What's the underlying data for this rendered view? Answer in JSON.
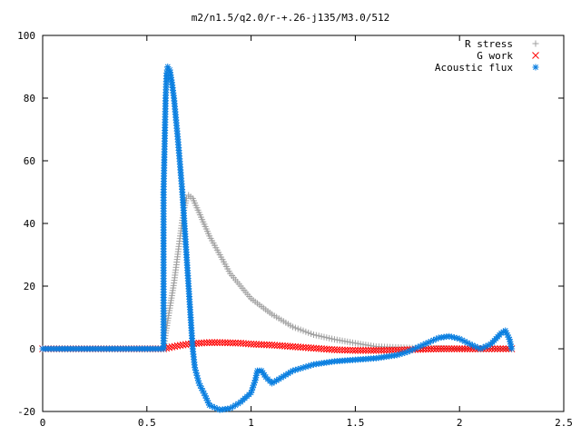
{
  "chart_data": {
    "type": "scatter",
    "title": "m2/n1.5/q2.0/r-+.26-j135/M3.0/512",
    "xlabel": "",
    "ylabel": "",
    "xlim": [
      0,
      2.5
    ],
    "ylim": [
      -20,
      100
    ],
    "x_ticks": [
      "0",
      "0.5",
      "1",
      "1.5",
      "2",
      "2.5"
    ],
    "y_ticks": [
      "-20",
      "0",
      "20",
      "40",
      "60",
      "80",
      "100"
    ],
    "legend_position": "top-right",
    "grid": false,
    "series": [
      {
        "name": "R stress",
        "marker": "plus",
        "color": "#a0a0a0",
        "points": [
          [
            0,
            0
          ],
          [
            0.2,
            0
          ],
          [
            0.4,
            0
          ],
          [
            0.58,
            0
          ],
          [
            0.59,
            5
          ],
          [
            0.6,
            9
          ],
          [
            0.61,
            13
          ],
          [
            0.62,
            17
          ],
          [
            0.63,
            21
          ],
          [
            0.64,
            26
          ],
          [
            0.65,
            31
          ],
          [
            0.66,
            36
          ],
          [
            0.67,
            41
          ],
          [
            0.68,
            45
          ],
          [
            0.69,
            48
          ],
          [
            0.7,
            49
          ],
          [
            0.72,
            48
          ],
          [
            0.74,
            45
          ],
          [
            0.76,
            42
          ],
          [
            0.8,
            36
          ],
          [
            0.85,
            30
          ],
          [
            0.9,
            24
          ],
          [
            1.0,
            16
          ],
          [
            1.1,
            11
          ],
          [
            1.2,
            7
          ],
          [
            1.3,
            4.5
          ],
          [
            1.4,
            3
          ],
          [
            1.5,
            1.8
          ],
          [
            1.6,
            0.7
          ],
          [
            1.8,
            0.2
          ],
          [
            2.0,
            0
          ],
          [
            2.25,
            0
          ]
        ]
      },
      {
        "name": "G work",
        "marker": "cross",
        "color": "#ff0000",
        "points": [
          [
            0,
            0
          ],
          [
            0.2,
            0
          ],
          [
            0.4,
            0
          ],
          [
            0.58,
            0
          ],
          [
            0.62,
            0.6
          ],
          [
            0.66,
            1.1
          ],
          [
            0.7,
            1.5
          ],
          [
            0.75,
            1.8
          ],
          [
            0.8,
            2
          ],
          [
            0.85,
            2
          ],
          [
            0.9,
            1.9
          ],
          [
            0.95,
            1.8
          ],
          [
            1.0,
            1.5
          ],
          [
            1.1,
            1.2
          ],
          [
            1.2,
            0.7
          ],
          [
            1.3,
            0.2
          ],
          [
            1.4,
            -0.3
          ],
          [
            1.5,
            -0.5
          ],
          [
            1.6,
            -0.5
          ],
          [
            1.7,
            -0.4
          ],
          [
            1.8,
            -0.2
          ],
          [
            1.9,
            0
          ],
          [
            2.0,
            0
          ],
          [
            2.1,
            0
          ],
          [
            2.25,
            0
          ]
        ]
      },
      {
        "name": "Acoustic flux",
        "marker": "star",
        "color": "#0a7fe0",
        "points": [
          [
            0,
            0
          ],
          [
            0.2,
            0
          ],
          [
            0.4,
            0
          ],
          [
            0.58,
            0
          ],
          [
            0.58,
            50
          ],
          [
            0.59,
            80
          ],
          [
            0.595,
            88
          ],
          [
            0.6,
            90
          ],
          [
            0.61,
            89
          ],
          [
            0.62,
            85
          ],
          [
            0.63,
            80
          ],
          [
            0.64,
            73
          ],
          [
            0.65,
            66
          ],
          [
            0.66,
            58
          ],
          [
            0.67,
            50
          ],
          [
            0.68,
            40
          ],
          [
            0.69,
            30
          ],
          [
            0.7,
            20
          ],
          [
            0.71,
            10
          ],
          [
            0.72,
            0
          ],
          [
            0.73,
            -6
          ],
          [
            0.75,
            -11
          ],
          [
            0.78,
            -15
          ],
          [
            0.8,
            -18
          ],
          [
            0.85,
            -19.5
          ],
          [
            0.9,
            -19
          ],
          [
            0.95,
            -17
          ],
          [
            1.0,
            -14
          ],
          [
            1.02,
            -10
          ],
          [
            1.03,
            -7
          ],
          [
            1.05,
            -7
          ],
          [
            1.07,
            -9
          ],
          [
            1.1,
            -11
          ],
          [
            1.2,
            -7
          ],
          [
            1.3,
            -5
          ],
          [
            1.4,
            -4
          ],
          [
            1.5,
            -3.5
          ],
          [
            1.6,
            -3
          ],
          [
            1.7,
            -2
          ],
          [
            1.75,
            -1
          ],
          [
            1.8,
            0.5
          ],
          [
            1.85,
            2
          ],
          [
            1.9,
            3.5
          ],
          [
            1.95,
            4
          ],
          [
            2.0,
            3.2
          ],
          [
            2.05,
            1.5
          ],
          [
            2.1,
            0
          ],
          [
            2.15,
            1.5
          ],
          [
            2.2,
            5
          ],
          [
            2.22,
            5.8
          ],
          [
            2.24,
            3
          ],
          [
            2.25,
            0
          ]
        ]
      }
    ]
  }
}
